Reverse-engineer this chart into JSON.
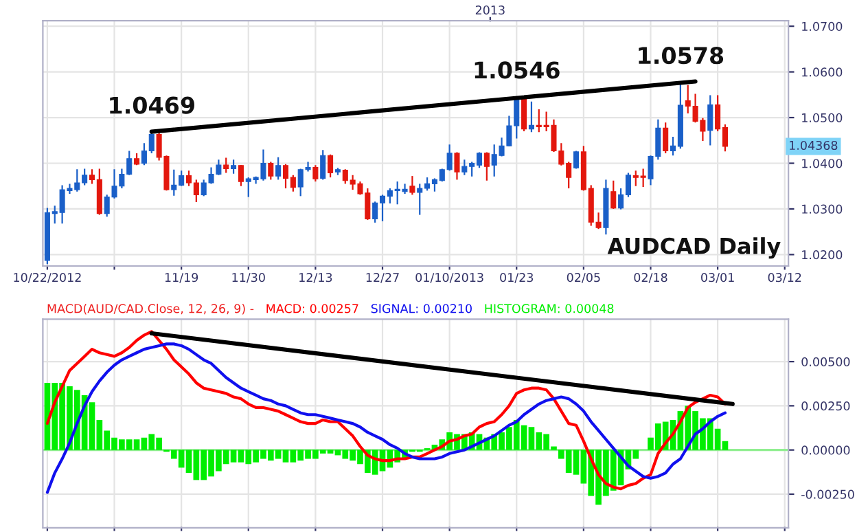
{
  "chart_data": [
    {
      "type": "candlestick",
      "categories": [
        "10/22/2012",
        null,
        null,
        null,
        null,
        null,
        null,
        null,
        null,
        null,
        null,
        null,
        null,
        null,
        null,
        null,
        null,
        null,
        "11/19",
        null,
        null,
        null,
        null,
        null,
        null,
        null,
        null,
        "11/30",
        null,
        null,
        null,
        null,
        null,
        null,
        null,
        null,
        "12/13",
        null,
        null,
        null,
        null,
        null,
        null,
        null,
        null,
        "12/27",
        null,
        null,
        null,
        null,
        null,
        null,
        null,
        null,
        "01/10/2013",
        null,
        null,
        null,
        null,
        null,
        null,
        null,
        null,
        "01/23",
        null,
        null,
        null,
        null,
        null,
        null,
        null,
        null,
        "02/05",
        null,
        null,
        null,
        null,
        null,
        null,
        null,
        null,
        "02/18",
        null,
        null,
        null,
        null,
        null,
        null,
        null,
        null,
        "03/01",
        null,
        null,
        null,
        null,
        null,
        null,
        null,
        null,
        "03/12"
      ],
      "ohlc": [
        [
          1.0187,
          1.0302,
          1.0179,
          1.0292
        ],
        [
          1.029,
          1.0307,
          1.0268,
          1.0294
        ],
        [
          1.0292,
          1.0352,
          1.0268,
          1.0342
        ],
        [
          1.034,
          1.0355,
          1.0333,
          1.0345
        ],
        [
          1.0342,
          1.0387,
          1.0338,
          1.0357
        ],
        [
          1.0357,
          1.0388,
          1.0352,
          1.0374
        ],
        [
          1.0374,
          1.0387,
          1.0355,
          1.0364
        ],
        [
          1.0364,
          1.0388,
          1.0287,
          1.029
        ],
        [
          1.029,
          1.0331,
          1.0283,
          1.0326
        ],
        [
          1.0326,
          1.0387,
          1.0323,
          1.035
        ],
        [
          1.035,
          1.0388,
          1.0345,
          1.0376
        ],
        [
          1.0376,
          1.0427,
          1.0374,
          1.041
        ],
        [
          1.041,
          1.0422,
          1.0396,
          1.0398
        ],
        [
          1.04,
          1.0444,
          1.0396,
          1.0427
        ],
        [
          1.0427,
          1.0469,
          1.0422,
          1.0463
        ],
        [
          1.0463,
          1.0467,
          1.0406,
          1.0413
        ],
        [
          1.0415,
          1.0417,
          1.034,
          1.0342
        ],
        [
          1.0342,
          1.0386,
          1.0329,
          1.0352
        ],
        [
          1.0352,
          1.0384,
          1.035,
          1.0373
        ],
        [
          1.0373,
          1.0384,
          1.035,
          1.0357
        ],
        [
          1.0357,
          1.0364,
          1.0315,
          1.0331
        ],
        [
          1.0331,
          1.0364,
          1.0328,
          1.0357
        ],
        [
          1.0357,
          1.0391,
          1.0355,
          1.0376
        ],
        [
          1.0376,
          1.0408,
          1.0374,
          1.0396
        ],
        [
          1.0396,
          1.0412,
          1.0379,
          1.0388
        ],
        [
          1.0388,
          1.0408,
          1.0377,
          1.0395
        ],
        [
          1.0395,
          1.0396,
          1.035,
          1.036
        ],
        [
          1.036,
          1.0369,
          1.0326,
          1.0366
        ],
        [
          1.0364,
          1.0371,
          1.0355,
          1.0369
        ],
        [
          1.0366,
          1.043,
          1.0362,
          1.04
        ],
        [
          1.04,
          1.0403,
          1.0364,
          1.0372
        ],
        [
          1.0372,
          1.0413,
          1.0364,
          1.0395
        ],
        [
          1.0395,
          1.0398,
          1.0345,
          1.0367
        ],
        [
          1.0369,
          1.0374,
          1.0338,
          1.0347
        ],
        [
          1.0348,
          1.0388,
          1.0328,
          1.0386
        ],
        [
          1.0386,
          1.0403,
          1.0382,
          1.0391
        ],
        [
          1.0391,
          1.0396,
          1.036,
          1.0366
        ],
        [
          1.0367,
          1.0429,
          1.0364,
          1.0417
        ],
        [
          1.0417,
          1.0419,
          1.0369,
          1.0379
        ],
        [
          1.0381,
          1.039,
          1.0374,
          1.0386
        ],
        [
          1.0385,
          1.0387,
          1.0355,
          1.0362
        ],
        [
          1.0363,
          1.0374,
          1.0342,
          1.0354
        ],
        [
          1.0355,
          1.036,
          1.0331,
          1.0333
        ],
        [
          1.0335,
          1.0345,
          1.0276,
          1.0278
        ],
        [
          1.0278,
          1.0316,
          1.027,
          1.0313
        ],
        [
          1.0313,
          1.0331,
          1.0273,
          1.0328
        ],
        [
          1.0328,
          1.0345,
          1.0312,
          1.034
        ],
        [
          1.034,
          1.036,
          1.031,
          1.0343
        ],
        [
          1.0338,
          1.0355,
          1.0333,
          1.0343
        ],
        [
          1.035,
          1.0372,
          1.0331,
          1.0336
        ],
        [
          1.0336,
          1.0355,
          1.0287,
          1.0345
        ],
        [
          1.0345,
          1.0369,
          1.034,
          1.0355
        ],
        [
          1.0355,
          1.0367,
          1.0338,
          1.0364
        ],
        [
          1.0362,
          1.0388,
          1.036,
          1.0386
        ],
        [
          1.0386,
          1.0441,
          1.0384,
          1.0422
        ],
        [
          1.0422,
          1.0424,
          1.0364,
          1.0381
        ],
        [
          1.0381,
          1.0408,
          1.0374,
          1.0393
        ],
        [
          1.0393,
          1.0403,
          1.0371,
          1.04
        ],
        [
          1.0396,
          1.0424,
          1.039,
          1.0422
        ],
        [
          1.0422,
          1.0424,
          1.0362,
          1.0393
        ],
        [
          1.0396,
          1.0441,
          1.0371,
          1.0419
        ],
        [
          1.0417,
          1.0456,
          1.0415,
          1.0438
        ],
        [
          1.0438,
          1.0504,
          1.0437,
          1.0482
        ],
        [
          1.0482,
          1.0546,
          1.0454,
          1.054
        ],
        [
          1.0542,
          1.0547,
          1.047,
          1.0475
        ],
        [
          1.0475,
          1.0535,
          1.0468,
          1.0483
        ],
        [
          1.0483,
          1.0518,
          1.0468,
          1.048
        ],
        [
          1.0483,
          1.0513,
          1.047,
          1.048
        ],
        [
          1.0483,
          1.0496,
          1.0425,
          1.0427
        ],
        [
          1.0427,
          1.0444,
          1.0395,
          1.0398
        ],
        [
          1.04,
          1.0403,
          1.0345,
          1.0369
        ],
        [
          1.039,
          1.0427,
          1.0388,
          1.0425
        ],
        [
          1.0425,
          1.0438,
          1.034,
          1.0342
        ],
        [
          1.0345,
          1.0352,
          1.0263,
          1.0271
        ],
        [
          1.0271,
          1.0292,
          1.0256,
          1.0259
        ],
        [
          1.0259,
          1.0364,
          1.0244,
          1.0345
        ],
        [
          1.0338,
          1.0362,
          1.03,
          1.0302
        ],
        [
          1.0302,
          1.0345,
          1.0299,
          1.0331
        ],
        [
          1.0331,
          1.0379,
          1.0326,
          1.0374
        ],
        [
          1.0373,
          1.0384,
          1.035,
          1.0369
        ],
        [
          1.0372,
          1.0388,
          1.0348,
          1.0369
        ],
        [
          1.0366,
          1.0417,
          1.0352,
          1.0415
        ],
        [
          1.0415,
          1.0496,
          1.0408,
          1.0477
        ],
        [
          1.0477,
          1.0489,
          1.0422,
          1.0427
        ],
        [
          1.0427,
          1.0458,
          1.0417,
          1.0438
        ],
        [
          1.0437,
          1.0578,
          1.0432,
          1.0527
        ],
        [
          1.0537,
          1.0571,
          1.0509,
          1.0525
        ],
        [
          1.0525,
          1.0552,
          1.0489,
          1.0492
        ],
        [
          1.0494,
          1.0499,
          1.0449,
          1.047
        ],
        [
          1.0472,
          1.0549,
          1.0439,
          1.0528
        ],
        [
          1.0528,
          1.0549,
          1.047,
          1.0475
        ],
        [
          1.0478,
          1.0485,
          1.0426,
          1.04368
        ],
        null,
        null,
        null,
        null,
        null,
        null,
        null,
        null
      ],
      "colors": [
        "#1a5fc8",
        "#1a5fc8",
        "#1a5fc8",
        "#1a5fc8",
        "#1a5fc8",
        "#1a5fc8",
        "#e3170d",
        "#e3170d",
        "#1a5fc8",
        "#1a5fc8",
        "#1a5fc8",
        "#1a5fc8",
        "#e3170d",
        "#1a5fc8",
        "#1a5fc8",
        "#e3170d",
        "#e3170d",
        "#1a5fc8",
        "#1a5fc8",
        "#e3170d",
        "#e3170d",
        "#1a5fc8",
        "#1a5fc8",
        "#1a5fc8",
        "#e3170d",
        "#1a5fc8",
        "#e3170d",
        "#1a5fc8",
        "#1a5fc8",
        "#1a5fc8",
        "#e3170d",
        "#1a5fc8",
        "#e3170d",
        "#e3170d",
        "#1a5fc8",
        "#1a5fc8",
        "#e3170d",
        "#1a5fc8",
        "#e3170d",
        "#1a5fc8",
        "#e3170d",
        "#e3170d",
        "#e3170d",
        "#e3170d",
        "#1a5fc8",
        "#1a5fc8",
        "#1a5fc8",
        "#1a5fc8",
        "#1a5fc8",
        "#e3170d",
        "#1a5fc8",
        "#1a5fc8",
        "#1a5fc8",
        "#1a5fc8",
        "#1a5fc8",
        "#e3170d",
        "#1a5fc8",
        "#1a5fc8",
        "#1a5fc8",
        "#e3170d",
        "#1a5fc8",
        "#1a5fc8",
        "#1a5fc8",
        "#1a5fc8",
        "#e3170d",
        "#1a5fc8",
        "#e3170d",
        "#e3170d",
        "#e3170d",
        "#e3170d",
        "#e3170d",
        "#1a5fc8",
        "#e3170d",
        "#e3170d",
        "#e3170d",
        "#1a5fc8",
        "#e3170d",
        "#1a5fc8",
        "#1a5fc8",
        "#e3170d",
        "#e3170d",
        "#1a5fc8",
        "#1a5fc8",
        "#e3170d",
        "#1a5fc8",
        "#1a5fc8",
        "#e3170d",
        "#e3170d",
        "#e3170d",
        "#1a5fc8",
        "#e3170d",
        "#e3170d",
        null,
        null,
        null,
        null,
        null,
        null,
        null,
        null
      ],
      "series": [
        {
          "type": "line",
          "color": "#000000",
          "values": [
            null,
            null,
            null,
            null,
            null,
            null,
            null,
            null,
            null,
            null,
            null,
            null,
            null,
            null,
            1.0469,
            null,
            null,
            null,
            null,
            null,
            null,
            null,
            null,
            null,
            null,
            null,
            null,
            null,
            null,
            null,
            null,
            null,
            null,
            null,
            null,
            null,
            null,
            null,
            null,
            null,
            null,
            null,
            null,
            null,
            null,
            null,
            null,
            null,
            null,
            null,
            null,
            null,
            null,
            null,
            null,
            null,
            null,
            null,
            null,
            null,
            null,
            null,
            null,
            null,
            null,
            null,
            null,
            null,
            null,
            null,
            null,
            null,
            null,
            null,
            null,
            null,
            null,
            null,
            null,
            null,
            null,
            null,
            null,
            null,
            null,
            null,
            null,
            1.0579,
            null,
            null,
            null,
            null,
            null,
            null,
            null,
            null,
            null,
            null,
            null,
            null
          ]
        }
      ],
      "ylim": [
        1.0175,
        1.0712
      ],
      "yticks": [
        {
          "value": 1.02,
          "label": "1.0200"
        },
        {
          "value": 1.03,
          "label": "1.0300"
        },
        {
          "value": 1.04,
          "label": "1.0400"
        },
        {
          "value": 1.05,
          "label": "1.0500"
        },
        {
          "value": 1.06,
          "label": "1.0600"
        },
        {
          "value": 1.07,
          "label": "1.0700"
        }
      ],
      "grid": true,
      "annotations": [
        {
          "text": "1.0469",
          "y": 1.0469
        },
        {
          "text": "1.0546",
          "y": 1.0546
        },
        {
          "text": "1.0578",
          "y": 1.0578
        },
        "1.04368",
        "AUDCAD Daily",
        "2013"
      ]
    },
    {
      "type": "bar",
      "title": "MACD(AUD/CAD.Close, 12, 26, 9) -",
      "categories": [
        null,
        null,
        null,
        null,
        null,
        null,
        null,
        null,
        null,
        null,
        null,
        null,
        null,
        null,
        null,
        null,
        null,
        null,
        null,
        null,
        null,
        null,
        null,
        null,
        null,
        null,
        null,
        null,
        null,
        null,
        null,
        null,
        null,
        null,
        null,
        null,
        null,
        null,
        null,
        null,
        null,
        null,
        null,
        null,
        null,
        null,
        null,
        null,
        null,
        null,
        null,
        null,
        null,
        null,
        null,
        null,
        null,
        null,
        null,
        null,
        null,
        null,
        null,
        null,
        null,
        null,
        null,
        null,
        null,
        null,
        null,
        null,
        null,
        null,
        null,
        null,
        null,
        null,
        null,
        null,
        null,
        null,
        null,
        null,
        null,
        null,
        null,
        null,
        null,
        null,
        null,
        null,
        null,
        null,
        null,
        null,
        null,
        null,
        null,
        null
      ],
      "series": [
        {
          "type": "bar",
          "name": "HISTOGRAM: 0.00048",
          "color": "#00ee00",
          "values": [
            0.0038,
            0.0038,
            0.0038,
            0.0036,
            0.0034,
            0.0031,
            0.0027,
            0.0017,
            0.0011,
            0.0007,
            0.0006,
            0.0006,
            0.0006,
            0.0007,
            0.0009,
            0.0007,
            -0.0001,
            -0.0005,
            -0.001,
            -0.0013,
            -0.0017,
            -0.0017,
            -0.0015,
            -0.0012,
            -0.0008,
            -0.0007,
            -0.0007,
            -0.0008,
            -0.0007,
            -0.0005,
            -0.0006,
            -0.0005,
            -0.0007,
            -0.0007,
            -0.0006,
            -0.0005,
            -0.0005,
            -0.0002,
            -0.0002,
            -0.0003,
            -0.0005,
            -0.0006,
            -0.0008,
            -0.0013,
            -0.0014,
            -0.0012,
            -0.001,
            -0.0007,
            -0.0005,
            -0.0001,
            -0.0001,
            0.0001,
            0.0003,
            0.0006,
            0.001,
            0.0009,
            0.0009,
            0.001,
            0.0009,
            0.0007,
            0.0009,
            0.001,
            0.0013,
            0.0017,
            0.0014,
            0.0013,
            0.001,
            0.0009,
            0.0002,
            -0.0005,
            -0.0013,
            -0.0014,
            -0.0019,
            -0.0026,
            -0.0031,
            -0.0026,
            -0.0023,
            -0.002,
            -0.0011,
            -0.0005,
            0.0,
            0.0007,
            0.0015,
            0.0016,
            0.0017,
            0.0022,
            0.0025,
            0.0022,
            0.0018,
            0.0018,
            0.0012,
            0.0005,
            null,
            null,
            null,
            null,
            null,
            null,
            null,
            null
          ]
        },
        {
          "type": "line",
          "name": "MACD: 0.00257",
          "color": "#ff0000",
          "values": [
            0.0015,
            0.0027,
            0.0036,
            0.0045,
            0.0049,
            0.0053,
            0.0057,
            0.0055,
            0.0054,
            0.0053,
            0.0055,
            0.0058,
            0.0062,
            0.0065,
            0.0067,
            0.0062,
            0.0057,
            0.0051,
            0.0047,
            0.0043,
            0.0038,
            0.0035,
            0.0034,
            0.0033,
            0.0032,
            0.003,
            0.0029,
            0.0026,
            0.0024,
            0.0024,
            0.0023,
            0.0022,
            0.002,
            0.0018,
            0.0016,
            0.0015,
            0.0015,
            0.0017,
            0.0016,
            0.0016,
            0.0012,
            0.0008,
            0.0002,
            -0.0003,
            -0.0005,
            -0.0006,
            -0.0006,
            -0.0005,
            -0.0005,
            -0.0004,
            -0.0004,
            -0.0002,
            0.0,
            0.0002,
            0.0005,
            0.0006,
            0.0008,
            0.0009,
            0.0013,
            0.0015,
            0.0016,
            0.002,
            0.0025,
            0.0032,
            0.0034,
            0.0035,
            0.0035,
            0.0034,
            0.0029,
            0.0022,
            0.0015,
            0.0014,
            0.0005,
            -0.0005,
            -0.0014,
            -0.0019,
            -0.0021,
            -0.0022,
            -0.002,
            -0.0019,
            -0.0016,
            -0.0014,
            -0.0002,
            0.0004,
            0.0009,
            0.0016,
            0.0024,
            0.0027,
            0.0029,
            0.0031,
            0.003,
            0.0026,
            null,
            null,
            null,
            null,
            null,
            null,
            null,
            null
          ]
        },
        {
          "type": "line",
          "name": "SIGNAL: 0.00210",
          "color": "#1010ee",
          "values": [
            -0.0024,
            -0.0013,
            -0.0005,
            0.0004,
            0.0015,
            0.0025,
            0.0033,
            0.0039,
            0.0044,
            0.0048,
            0.0051,
            0.0053,
            0.0055,
            0.0057,
            0.0058,
            0.0059,
            0.006,
            0.006,
            0.0059,
            0.0057,
            0.0054,
            0.0051,
            0.0049,
            0.0045,
            0.0041,
            0.0038,
            0.0035,
            0.0033,
            0.0031,
            0.0029,
            0.0028,
            0.0026,
            0.0025,
            0.0023,
            0.0021,
            0.002,
            0.002,
            0.0019,
            0.0018,
            0.0017,
            0.0016,
            0.0015,
            0.0013,
            0.001,
            0.0008,
            0.0006,
            0.0003,
            0.0001,
            -0.0002,
            -0.0004,
            -0.0005,
            -0.0005,
            -0.0005,
            -0.0004,
            -0.0002,
            -0.0001,
            0.0,
            0.0002,
            0.0004,
            0.0006,
            0.0008,
            0.0011,
            0.0014,
            0.0016,
            0.002,
            0.0023,
            0.0026,
            0.0028,
            0.0029,
            0.003,
            0.0029,
            0.0026,
            0.0022,
            0.0016,
            0.0011,
            0.0006,
            0.0001,
            -0.0004,
            -0.0009,
            -0.0012,
            -0.0015,
            -0.0016,
            -0.0015,
            -0.0013,
            -0.0008,
            -0.0005,
            0.0002,
            0.0009,
            0.0012,
            0.0016,
            0.0019,
            0.0021,
            null,
            null,
            null,
            null,
            null,
            null,
            null,
            null
          ]
        },
        {
          "type": "line",
          "color": "#000000",
          "values": [
            null,
            null,
            null,
            null,
            null,
            null,
            null,
            null,
            null,
            null,
            null,
            null,
            null,
            null,
            0.0066,
            null,
            null,
            null,
            null,
            null,
            null,
            null,
            null,
            null,
            null,
            null,
            null,
            null,
            null,
            null,
            null,
            null,
            null,
            null,
            null,
            null,
            null,
            null,
            null,
            null,
            null,
            null,
            null,
            null,
            null,
            null,
            null,
            null,
            null,
            null,
            null,
            null,
            null,
            null,
            null,
            null,
            null,
            null,
            null,
            null,
            null,
            null,
            null,
            null,
            null,
            null,
            null,
            null,
            null,
            null,
            null,
            null,
            null,
            null,
            null,
            null,
            null,
            null,
            null,
            null,
            null,
            null,
            null,
            null,
            null,
            null,
            null,
            null,
            null,
            null,
            null,
            null,
            0.0026,
            null,
            null,
            null,
            null,
            null,
            null,
            null
          ]
        }
      ],
      "ref_lines": [
        {
          "axis": "y",
          "value": 0,
          "color": "#90ee90"
        }
      ],
      "ylim": [
        -0.0044,
        0.0074
      ],
      "yticks": [
        {
          "value": -0.0025,
          "label": "-0.00250"
        },
        {
          "value": 0,
          "label": "0.00000"
        },
        {
          "value": 0.0025,
          "label": "0.00250"
        },
        {
          "value": 0.005,
          "label": "0.00500"
        }
      ],
      "grid": true,
      "legend": "top left",
      "tick_labels": "y"
    }
  ]
}
